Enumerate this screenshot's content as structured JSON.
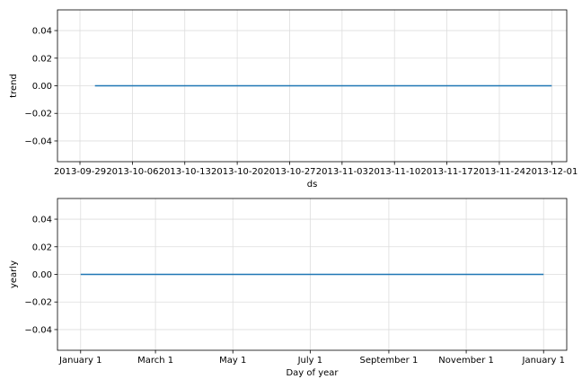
{
  "chart_data": [
    {
      "type": "line",
      "xlabel": "ds",
      "ylabel": "trend",
      "x_axis_kind": "date",
      "xlim": [
        "2013-09-26",
        "2013-12-03"
      ],
      "ylim": [
        -0.055,
        0.055
      ],
      "x_ticks": [
        {
          "value": "2013-09-29",
          "label": "2013-09-29"
        },
        {
          "value": "2013-10-06",
          "label": "2013-10-06"
        },
        {
          "value": "2013-10-13",
          "label": "2013-10-13"
        },
        {
          "value": "2013-10-20",
          "label": "2013-10-20"
        },
        {
          "value": "2013-10-27",
          "label": "2013-10-27"
        },
        {
          "value": "2013-11-03",
          "label": "2013-11-03"
        },
        {
          "value": "2013-11-10",
          "label": "2013-11-10"
        },
        {
          "value": "2013-11-17",
          "label": "2013-11-17"
        },
        {
          "value": "2013-11-24",
          "label": "2013-11-24"
        },
        {
          "value": "2013-12-01",
          "label": "2013-12-01"
        }
      ],
      "y_ticks": [
        {
          "value": 0.04,
          "label": "0.04"
        },
        {
          "value": 0.02,
          "label": "0.02"
        },
        {
          "value": 0.0,
          "label": "0.00"
        },
        {
          "value": -0.02,
          "label": "−0.02"
        },
        {
          "value": -0.04,
          "label": "−0.04"
        }
      ],
      "grid": true,
      "series": [
        {
          "color": "#1f77b4",
          "points": [
            [
              "2013-10-01",
              0.0
            ],
            [
              "2013-12-01",
              0.0
            ]
          ]
        }
      ]
    },
    {
      "type": "line",
      "xlabel": "Day of year",
      "ylabel": "yearly",
      "x_axis_kind": "day_of_year",
      "xlim": [
        -18.25,
        383.25
      ],
      "ylim": [
        -0.055,
        0.055
      ],
      "x_ticks": [
        {
          "value": 0,
          "label": "January 1"
        },
        {
          "value": 59,
          "label": "March 1"
        },
        {
          "value": 120,
          "label": "May 1"
        },
        {
          "value": 181,
          "label": "July 1"
        },
        {
          "value": 243,
          "label": "September 1"
        },
        {
          "value": 304,
          "label": "November 1"
        },
        {
          "value": 365,
          "label": "January 1"
        }
      ],
      "y_ticks": [
        {
          "value": 0.04,
          "label": "0.04"
        },
        {
          "value": 0.02,
          "label": "0.02"
        },
        {
          "value": 0.0,
          "label": "0.00"
        },
        {
          "value": -0.02,
          "label": "−0.02"
        },
        {
          "value": -0.04,
          "label": "−0.04"
        }
      ],
      "grid": true,
      "series": [
        {
          "color": "#1f77b4",
          "points": [
            [
              0,
              0.0
            ],
            [
              365,
              0.0
            ]
          ]
        }
      ]
    }
  ]
}
